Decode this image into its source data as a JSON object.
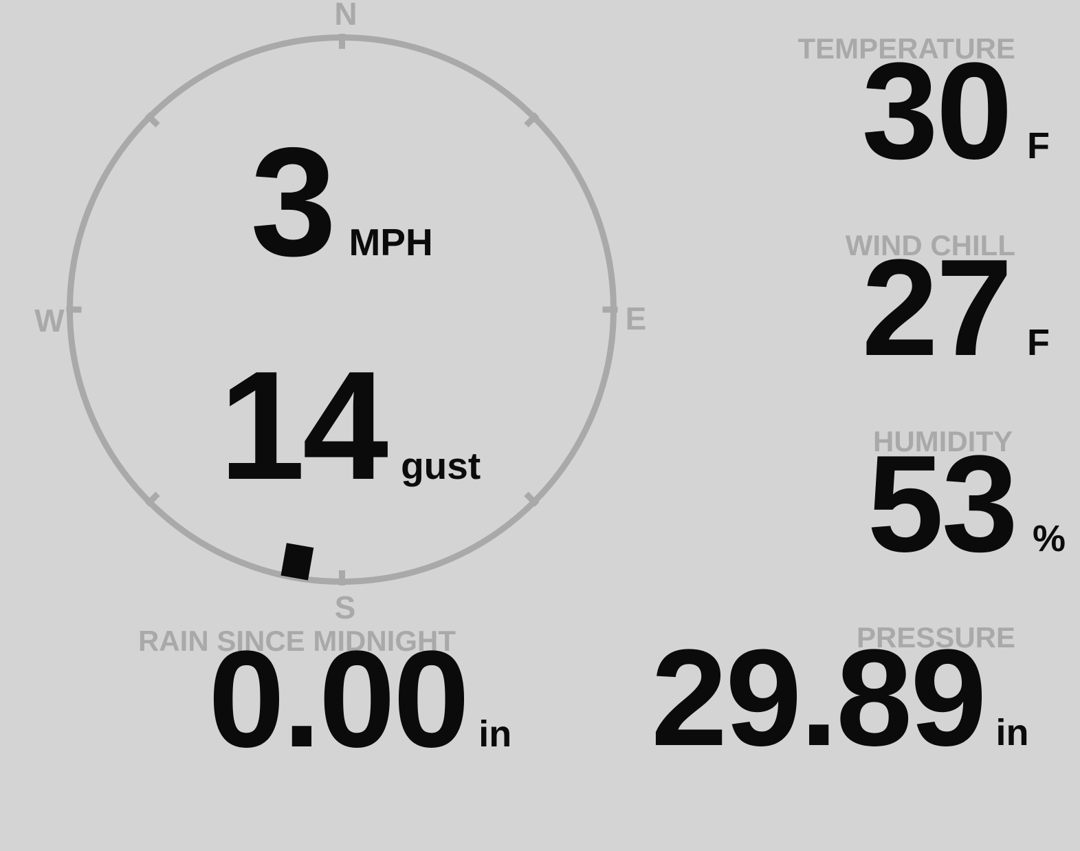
{
  "colors": {
    "background": "#d4d4d4",
    "muted": "#a9a9a9",
    "ink": "#0b0b0b"
  },
  "compass": {
    "cardinals": {
      "north": "N",
      "east": "E",
      "south": "S",
      "west": "W"
    },
    "wind_speed": {
      "value": "3",
      "unit": "MPH"
    },
    "wind_gust": {
      "value": "14",
      "unit": "gust"
    },
    "direction_degrees": 190
  },
  "stats": {
    "temperature": {
      "label": "TEMPERATURE",
      "value": "30",
      "unit": "F"
    },
    "wind_chill": {
      "label": "WIND CHILL",
      "value": "27",
      "unit": "F"
    },
    "humidity": {
      "label": "HUMIDITY",
      "value": "53",
      "unit": "%"
    },
    "rain": {
      "label": "RAIN SINCE MIDNIGHT",
      "value": "0.00",
      "unit": "in"
    },
    "pressure": {
      "label": "PRESSURE",
      "value": "29.89",
      "unit": "in"
    }
  }
}
